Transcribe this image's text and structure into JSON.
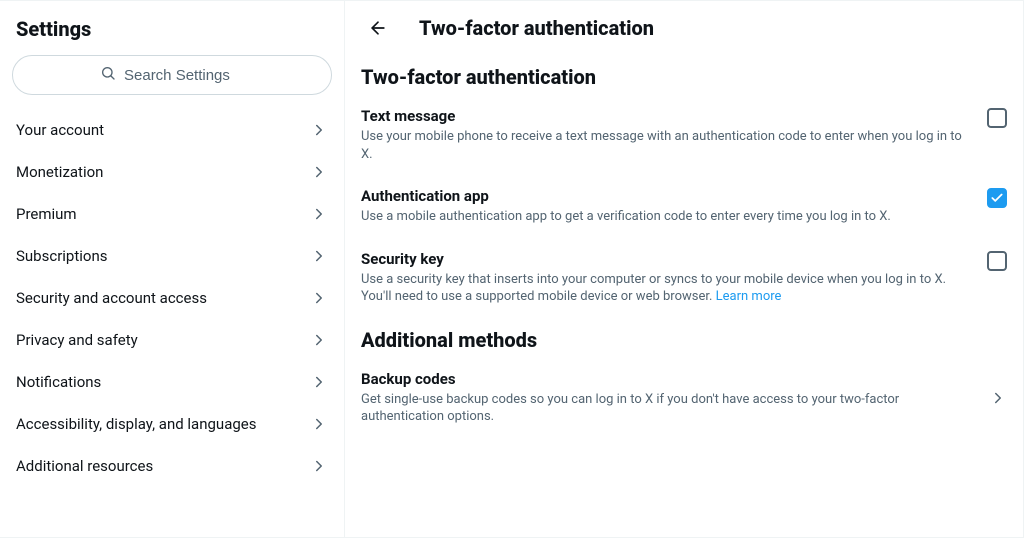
{
  "colors": {
    "text_primary": "#0f1419",
    "text_secondary": "#536471",
    "border": "#eff3f4",
    "input_border": "#cfd9de",
    "accent": "#1d9bf0",
    "background": "#ffffff"
  },
  "sidebar": {
    "title": "Settings",
    "search_placeholder": "Search Settings",
    "items": [
      {
        "label": "Your account",
        "name": "your-account"
      },
      {
        "label": "Monetization",
        "name": "monetization"
      },
      {
        "label": "Premium",
        "name": "premium"
      },
      {
        "label": "Subscriptions",
        "name": "subscriptions"
      },
      {
        "label": "Security and account access",
        "name": "security-access"
      },
      {
        "label": "Privacy and safety",
        "name": "privacy-safety"
      },
      {
        "label": "Notifications",
        "name": "notifications"
      },
      {
        "label": "Accessibility, display, and languages",
        "name": "accessibility"
      },
      {
        "label": "Additional resources",
        "name": "additional-resources"
      }
    ]
  },
  "main": {
    "header_title": "Two-factor authentication",
    "sections": [
      {
        "title": "Two-factor authentication",
        "options": [
          {
            "name": "text-message",
            "title": "Text message",
            "desc": "Use your mobile phone to receive a text message with an authentication code to enter when you log in to X.",
            "checked": false
          },
          {
            "name": "authentication-app",
            "title": "Authentication app",
            "desc": "Use a mobile authentication app to get a verification code to enter every time you log in to X.",
            "checked": true
          },
          {
            "name": "security-key",
            "title": "Security key",
            "desc": "Use a security key that inserts into your computer or syncs to your mobile device when you log in to X. You'll need to use a supported mobile device or web browser. ",
            "link_text": "Learn more",
            "checked": false
          }
        ]
      },
      {
        "title": "Additional methods",
        "nav_items": [
          {
            "name": "backup-codes",
            "title": "Backup codes",
            "desc": "Get single-use backup codes so you can log in to X if you don't have access to your two-factor authentication options."
          }
        ]
      }
    ]
  }
}
